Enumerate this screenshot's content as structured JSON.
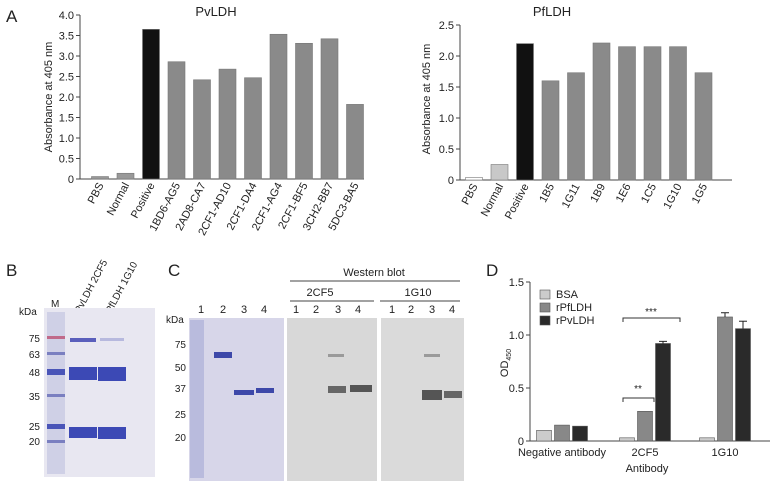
{
  "panels": {
    "A": "A",
    "B": "B",
    "C": "C",
    "D": "D"
  },
  "chart_data": [
    {
      "id": "pvldh",
      "type": "bar",
      "title": "PvLDH",
      "ylabel": "Absorbance at 405 nm",
      "ylim": [
        0,
        4
      ],
      "yticks": [
        "0",
        "0.5",
        "1.0",
        "1.5",
        "2.0",
        "2.5",
        "3.0",
        "3.5",
        "4.0"
      ],
      "categories": [
        "PBS",
        "Normal",
        "Positive",
        "1BD6-AG5",
        "2AD8-CA7",
        "2CF1-AD10",
        "2CF1-DA4",
        "2CF1-AG4",
        "2CF1-BF5",
        "3CH2-BB7",
        "5DC3-BA5"
      ],
      "values": [
        0.06,
        0.14,
        3.65,
        2.86,
        2.42,
        2.68,
        2.47,
        3.53,
        3.31,
        3.42,
        1.82
      ],
      "colors": [
        "#999999",
        "#999999",
        "#111111",
        "#8a8a8a",
        "#8a8a8a",
        "#8a8a8a",
        "#8a8a8a",
        "#8a8a8a",
        "#8a8a8a",
        "#8a8a8a",
        "#8a8a8a"
      ]
    },
    {
      "id": "pfldh",
      "type": "bar",
      "title": "PfLDH",
      "ylabel": "Absorbance at 405 nm",
      "ylim": [
        0,
        2.5
      ],
      "yticks": [
        "0",
        "0.5",
        "1.0",
        "1.5",
        "2.0",
        "2.5"
      ],
      "categories": [
        "PBS",
        "Normal",
        "Positive",
        "1B5",
        "1G11",
        "1B9",
        "1E6",
        "1C5",
        "1G10",
        "1G5"
      ],
      "values": [
        0.04,
        0.25,
        2.2,
        1.6,
        1.73,
        2.21,
        2.15,
        2.15,
        2.15,
        1.73
      ],
      "colors": [
        "#ffffff",
        "#c8c8c8",
        "#111111",
        "#8a8a8a",
        "#8a8a8a",
        "#8a8a8a",
        "#8a8a8a",
        "#8a8a8a",
        "#8a8a8a",
        "#8a8a8a"
      ]
    },
    {
      "id": "od450",
      "type": "bar",
      "ylabel": "OD",
      "ylabel_sub": "450",
      "xlabel": "Antibody",
      "ylim": [
        0,
        1.5
      ],
      "yticks": [
        "0",
        "0.5",
        "1.0",
        "1.5"
      ],
      "categories": [
        "Negative antibody",
        "2CF5",
        "1G10"
      ],
      "series": [
        {
          "name": "BSA",
          "color": "#cccccc",
          "values": [
            0.1,
            0.03,
            0.03
          ],
          "errors": [
            0,
            0,
            0
          ]
        },
        {
          "name": "rPfLDH",
          "color": "#888888",
          "values": [
            0.15,
            0.28,
            1.17
          ],
          "errors": [
            0,
            0,
            0.04
          ]
        },
        {
          "name": "rPvLDH",
          "color": "#2a2a2a",
          "values": [
            0.14,
            0.92,
            1.06
          ],
          "errors": [
            0,
            0.02,
            0.07
          ]
        }
      ],
      "annotations": [
        "***",
        "**"
      ]
    }
  ],
  "blot_b": {
    "kda_label": "kDa",
    "lane_m": "M",
    "lanes": [
      "PvLDH 2CF5",
      "PfLDH 1G10"
    ],
    "markers": [
      "75",
      "63",
      "48",
      "35",
      "25",
      "20"
    ]
  },
  "blot_c": {
    "kda_label": "kDa",
    "markers": [
      "75",
      "50",
      "37",
      "25",
      "20"
    ],
    "western_title": "Western blot",
    "groups": [
      "2CF5",
      "1G10"
    ],
    "lanes_gel": [
      "1",
      "2",
      "3",
      "4"
    ],
    "lanes_2cf5": [
      "1",
      "2",
      "3",
      "4"
    ],
    "lanes_1g10": [
      "1",
      "2",
      "3",
      "4"
    ]
  }
}
